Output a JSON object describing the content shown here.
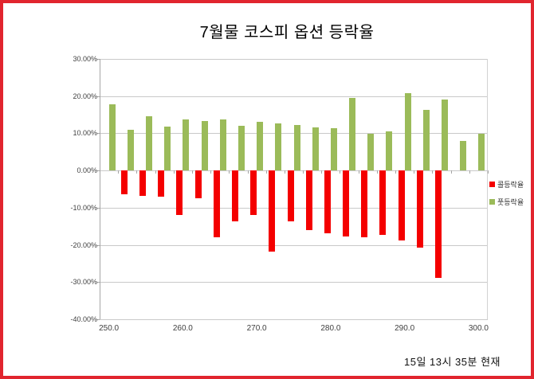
{
  "chart_data": {
    "type": "bar",
    "title": "7월물 코스피 옵션 등락율",
    "annotation": "15일 13시 35분 현재",
    "xlabel": "",
    "ylabel": "",
    "categories": [
      250.0,
      252.5,
      255.0,
      257.5,
      260.0,
      262.5,
      265.0,
      267.5,
      270.0,
      272.5,
      275.0,
      277.5,
      280.0,
      282.5,
      285.0,
      287.5,
      290.0,
      292.5,
      295.0,
      297.5,
      300.0
    ],
    "series": [
      {
        "name": "콜등락율",
        "color": "#F40000",
        "values": [
          null,
          -6.3,
          -6.8,
          -7.1,
          -11.9,
          -7.5,
          -17.9,
          -13.7,
          -12.0,
          -21.8,
          -13.6,
          -16.0,
          -16.9,
          -17.7,
          -18.0,
          -17.3,
          -18.9,
          -20.7,
          -28.9,
          null,
          null
        ]
      },
      {
        "name": "풋등락율",
        "color": "#9BBB59",
        "values": [
          17.8,
          10.9,
          14.5,
          11.8,
          13.8,
          13.4,
          13.8,
          12.0,
          13.1,
          12.6,
          12.3,
          11.6,
          11.3,
          19.6,
          9.8,
          10.5,
          20.8,
          16.2,
          19.1,
          8.0,
          9.8
        ]
      }
    ],
    "ylim": [
      -40,
      30
    ],
    "y_ticks": [
      30,
      20,
      10,
      0,
      -10,
      -20,
      -30,
      -40
    ],
    "y_tick_labels": [
      "30.00%",
      "20.00%",
      "10.00%",
      "0.00%",
      "-10.00%",
      "-20.00%",
      "-30.00%",
      "-40.00%"
    ],
    "x_tick_labels": [
      "250.0",
      "260.0",
      "270.0",
      "280.0",
      "290.0",
      "300.0"
    ],
    "x_tick_category_indices": [
      0,
      4,
      8,
      12,
      16,
      20
    ],
    "grid": true,
    "legend_position": "right",
    "colors": {
      "frame_border": "#E1252E",
      "gridline": "#C9C9C9",
      "axis": "#A6A6A6",
      "background": "#FFFFFF"
    }
  }
}
